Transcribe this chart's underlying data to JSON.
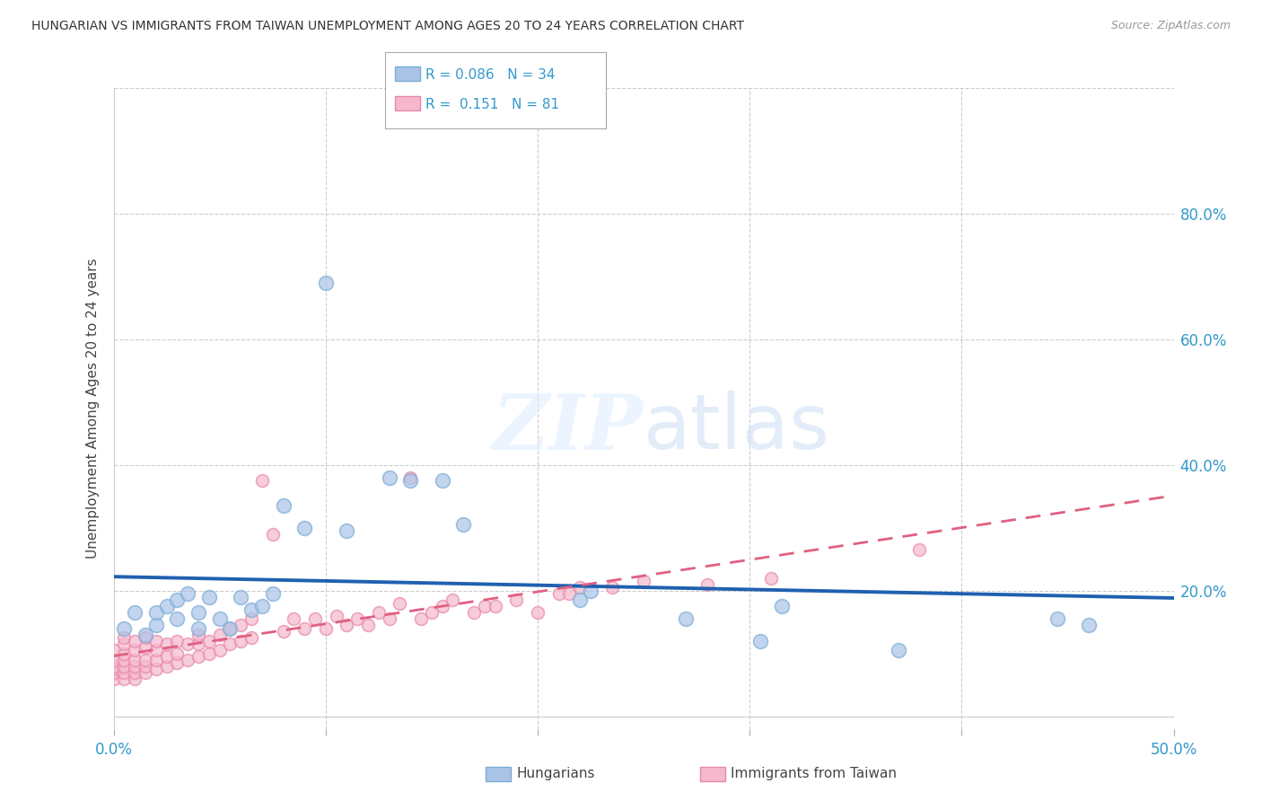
{
  "title": "HUNGARIAN VS IMMIGRANTS FROM TAIWAN UNEMPLOYMENT AMONG AGES 20 TO 24 YEARS CORRELATION CHART",
  "source": "Source: ZipAtlas.com",
  "ylabel": "Unemployment Among Ages 20 to 24 years",
  "xlim": [
    0.0,
    0.5
  ],
  "ylim": [
    -0.02,
    1.0
  ],
  "yticks": [
    0.0,
    0.2,
    0.4,
    0.6,
    0.8
  ],
  "ytick_labels": [
    "",
    "20.0%",
    "40.0%",
    "60.0%",
    "80.0%"
  ],
  "hungarian_color": "#aac4e8",
  "hungarian_edge_color": "#7aabd4",
  "taiwan_color": "#f5b8cc",
  "taiwan_edge_color": "#e888aa",
  "hungarian_line_color": "#2060b0",
  "taiwan_line_color": "#e06080",
  "legend_R_hungarian": "0.086",
  "legend_N_hungarian": "34",
  "legend_R_taiwan": "0.151",
  "legend_N_taiwan": "81",
  "background_color": "#ffffff",
  "hungarian_x": [
    0.005,
    0.01,
    0.015,
    0.02,
    0.02,
    0.025,
    0.03,
    0.03,
    0.035,
    0.04,
    0.04,
    0.045,
    0.05,
    0.055,
    0.06,
    0.065,
    0.07,
    0.075,
    0.08,
    0.09,
    0.1,
    0.11,
    0.13,
    0.14,
    0.155,
    0.165,
    0.22,
    0.225,
    0.27,
    0.305,
    0.315,
    0.37,
    0.445,
    0.46
  ],
  "hungarian_y": [
    0.14,
    0.165,
    0.13,
    0.145,
    0.165,
    0.175,
    0.155,
    0.185,
    0.195,
    0.14,
    0.165,
    0.19,
    0.155,
    0.14,
    0.19,
    0.17,
    0.175,
    0.195,
    0.335,
    0.3,
    0.69,
    0.295,
    0.38,
    0.375,
    0.375,
    0.305,
    0.185,
    0.2,
    0.155,
    0.12,
    0.175,
    0.105,
    0.155,
    0.145
  ],
  "taiwan_x": [
    0.0,
    0.0,
    0.0,
    0.0,
    0.0,
    0.0,
    0.005,
    0.005,
    0.005,
    0.005,
    0.005,
    0.005,
    0.005,
    0.01,
    0.01,
    0.01,
    0.01,
    0.01,
    0.01,
    0.015,
    0.015,
    0.015,
    0.015,
    0.015,
    0.02,
    0.02,
    0.02,
    0.02,
    0.025,
    0.025,
    0.025,
    0.03,
    0.03,
    0.03,
    0.035,
    0.035,
    0.04,
    0.04,
    0.04,
    0.045,
    0.045,
    0.05,
    0.05,
    0.055,
    0.055,
    0.06,
    0.06,
    0.065,
    0.065,
    0.07,
    0.075,
    0.08,
    0.085,
    0.09,
    0.095,
    0.1,
    0.105,
    0.11,
    0.115,
    0.12,
    0.125,
    0.13,
    0.135,
    0.14,
    0.145,
    0.15,
    0.155,
    0.16,
    0.17,
    0.175,
    0.18,
    0.19,
    0.2,
    0.21,
    0.215,
    0.22,
    0.235,
    0.25,
    0.28,
    0.31,
    0.38
  ],
  "taiwan_y": [
    0.06,
    0.07,
    0.075,
    0.08,
    0.09,
    0.105,
    0.06,
    0.07,
    0.08,
    0.09,
    0.1,
    0.115,
    0.125,
    0.06,
    0.07,
    0.08,
    0.09,
    0.105,
    0.12,
    0.07,
    0.08,
    0.09,
    0.11,
    0.125,
    0.075,
    0.09,
    0.105,
    0.12,
    0.08,
    0.095,
    0.115,
    0.085,
    0.1,
    0.12,
    0.09,
    0.115,
    0.095,
    0.115,
    0.13,
    0.1,
    0.12,
    0.105,
    0.13,
    0.115,
    0.14,
    0.12,
    0.145,
    0.125,
    0.155,
    0.375,
    0.29,
    0.135,
    0.155,
    0.14,
    0.155,
    0.14,
    0.16,
    0.145,
    0.155,
    0.145,
    0.165,
    0.155,
    0.18,
    0.38,
    0.155,
    0.165,
    0.175,
    0.185,
    0.165,
    0.175,
    0.175,
    0.185,
    0.165,
    0.195,
    0.195,
    0.205,
    0.205,
    0.215,
    0.21,
    0.22,
    0.265
  ]
}
